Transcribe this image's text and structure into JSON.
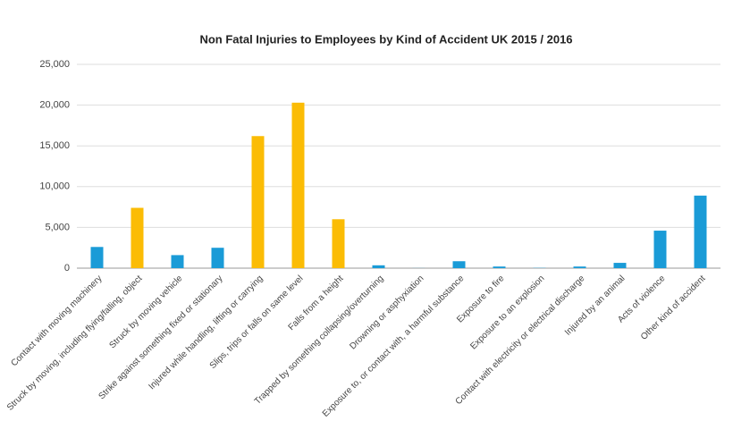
{
  "chart_data": {
    "type": "bar",
    "title": "Non Fatal Injuries to Employees by Kind of Accident UK 2015 / 2016",
    "categories": [
      "Contact with moving machinery",
      "Struck by moving, including flying/falling, object",
      "Struck by moving vehicle",
      "Strike against something fixed or stationary",
      "Injured while handling, lifting or carrying",
      "Slips, trips or falls on same level",
      "Falls from a height",
      "Trapped by something collapsing/overturning",
      "Drowning or asphyxiation",
      "Exposure to, or contact with, a harmful substance",
      "Exposure to fire",
      "Exposure to an explosion",
      "Contact with electricity or electrical discharge",
      "Injured by an animal",
      "Acts of violence",
      "Other kind of accident"
    ],
    "values": [
      2600,
      7400,
      1600,
      2500,
      16200,
      20300,
      6000,
      350,
      10,
      850,
      200,
      30,
      200,
      650,
      4600,
      8900
    ],
    "colors": [
      "#1a9bd7",
      "#fbbc05",
      "#1a9bd7",
      "#1a9bd7",
      "#fbbc05",
      "#fbbc05",
      "#fbbc05",
      "#1a9bd7",
      "#1a9bd7",
      "#1a9bd7",
      "#1a9bd7",
      "#1a9bd7",
      "#1a9bd7",
      "#1a9bd7",
      "#1a9bd7",
      "#1a9bd7"
    ],
    "ylim": [
      0,
      25000
    ],
    "yticks": [
      0,
      {
        "value": 5000,
        "label": "5,000"
      },
      {
        "value": 10000,
        "label": "10,000"
      },
      {
        "value": 15000,
        "label": "15,000"
      },
      {
        "value": 20000,
        "label": "20,000"
      },
      {
        "value": 25000,
        "label": "25,000"
      }
    ],
    "grid": true
  }
}
